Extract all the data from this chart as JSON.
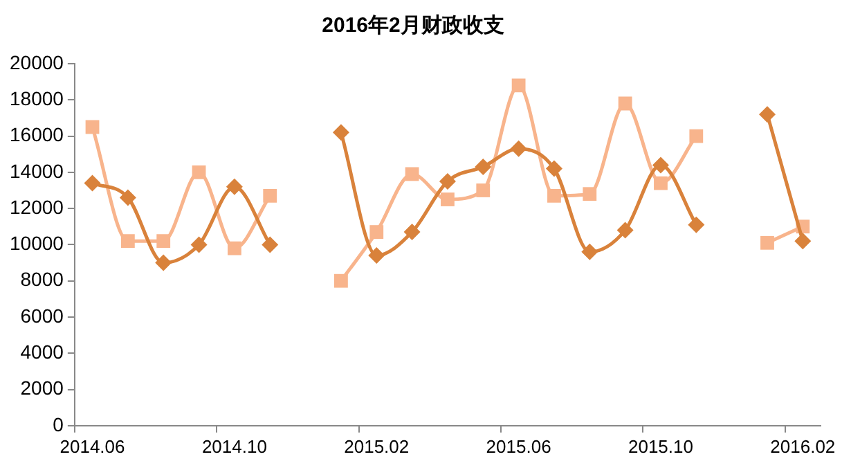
{
  "chart_data": {
    "type": "line",
    "title": "2016年2月财政收支",
    "categories": [
      "2014.06",
      null,
      null,
      null,
      "2014.10",
      null,
      null,
      null,
      "2015.02",
      null,
      null,
      null,
      "2015.06",
      null,
      null,
      null,
      "2015.10",
      null,
      null,
      null,
      "2016.02"
    ],
    "series": [
      {
        "color": "#d9823b",
        "marker": "diamond",
        "values": [
          13400,
          12600,
          9000,
          10000,
          13200,
          10000,
          null,
          16200,
          9400,
          10700,
          13500,
          14300,
          15300,
          14200,
          9600,
          10800,
          14400,
          11100,
          null,
          17200,
          10200
        ]
      },
      {
        "color": "#f8b48c",
        "marker": "square",
        "values": [
          16500,
          10200,
          10200,
          14000,
          9800,
          12700,
          null,
          8000,
          10700,
          13900,
          12500,
          13000,
          18800,
          12700,
          12800,
          17800,
          13400,
          16000,
          null,
          10100,
          11000
        ]
      }
    ],
    "ylim": [
      0,
      20000
    ],
    "yticks": [
      0,
      2000,
      4000,
      6000,
      8000,
      10000,
      12000,
      14000,
      16000,
      18000,
      20000
    ],
    "grid": false,
    "legend": false
  }
}
